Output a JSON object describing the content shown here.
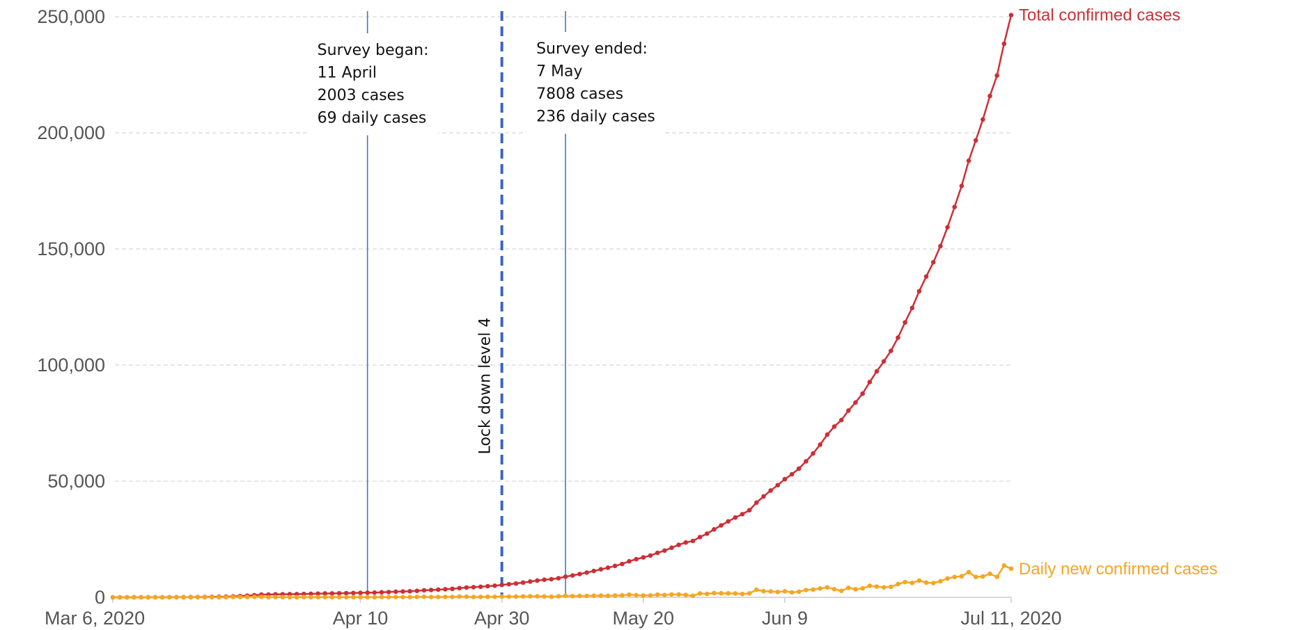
{
  "chart_data": {
    "type": "line",
    "x": [
      "2020-03-06",
      "2020-03-07",
      "2020-03-08",
      "2020-03-09",
      "2020-03-10",
      "2020-03-11",
      "2020-03-12",
      "2020-03-13",
      "2020-03-14",
      "2020-03-15",
      "2020-03-16",
      "2020-03-17",
      "2020-03-18",
      "2020-03-19",
      "2020-03-20",
      "2020-03-21",
      "2020-03-22",
      "2020-03-23",
      "2020-03-24",
      "2020-03-25",
      "2020-03-26",
      "2020-03-27",
      "2020-03-28",
      "2020-03-29",
      "2020-03-30",
      "2020-03-31",
      "2020-04-01",
      "2020-04-02",
      "2020-04-03",
      "2020-04-04",
      "2020-04-05",
      "2020-04-06",
      "2020-04-07",
      "2020-04-08",
      "2020-04-09",
      "2020-04-10",
      "2020-04-11",
      "2020-04-12",
      "2020-04-13",
      "2020-04-14",
      "2020-04-15",
      "2020-04-16",
      "2020-04-17",
      "2020-04-18",
      "2020-04-19",
      "2020-04-20",
      "2020-04-21",
      "2020-04-22",
      "2020-04-23",
      "2020-04-24",
      "2020-04-25",
      "2020-04-26",
      "2020-04-27",
      "2020-04-28",
      "2020-04-29",
      "2020-04-30",
      "2020-05-01",
      "2020-05-02",
      "2020-05-03",
      "2020-05-04",
      "2020-05-05",
      "2020-05-06",
      "2020-05-07",
      "2020-05-08",
      "2020-05-09",
      "2020-05-10",
      "2020-05-11",
      "2020-05-12",
      "2020-05-13",
      "2020-05-14",
      "2020-05-15",
      "2020-05-16",
      "2020-05-17",
      "2020-05-18",
      "2020-05-19",
      "2020-05-20",
      "2020-05-21",
      "2020-05-22",
      "2020-05-23",
      "2020-05-24",
      "2020-05-25",
      "2020-05-26",
      "2020-05-27",
      "2020-05-28",
      "2020-05-29",
      "2020-05-30",
      "2020-05-31",
      "2020-06-01",
      "2020-06-02",
      "2020-06-03",
      "2020-06-04",
      "2020-06-05",
      "2020-06-06",
      "2020-06-07",
      "2020-06-08",
      "2020-06-09",
      "2020-06-10",
      "2020-06-11",
      "2020-06-12",
      "2020-06-13",
      "2020-06-14",
      "2020-06-15",
      "2020-06-16",
      "2020-06-17",
      "2020-06-18",
      "2020-06-19",
      "2020-06-20",
      "2020-06-21",
      "2020-06-22",
      "2020-06-23",
      "2020-06-24",
      "2020-06-25",
      "2020-06-26",
      "2020-06-27",
      "2020-06-28",
      "2020-06-29",
      "2020-06-30",
      "2020-07-01",
      "2020-07-02",
      "2020-07-03",
      "2020-07-04",
      "2020-07-05",
      "2020-07-06",
      "2020-07-07",
      "2020-07-08",
      "2020-07-09",
      "2020-07-10",
      "2020-07-11"
    ],
    "series": [
      {
        "name": "Total confirmed cases",
        "color": "#cc2f36",
        "values": [
          1,
          1,
          2,
          7,
          7,
          13,
          17,
          24,
          38,
          51,
          62,
          85,
          116,
          150,
          202,
          240,
          274,
          402,
          554,
          709,
          927,
          1170,
          1187,
          1280,
          1326,
          1353,
          1380,
          1462,
          1505,
          1585,
          1655,
          1686,
          1749,
          1794,
          1845,
          1934,
          2003,
          2028,
          2173,
          2272,
          2415,
          2506,
          2605,
          2783,
          3034,
          3158,
          3300,
          3465,
          3635,
          3953,
          4220,
          4361,
          4546,
          4793,
          4996,
          5350,
          5647,
          5951,
          6336,
          6783,
          7220,
          7572,
          7808,
          8232,
          8895,
          9420,
          10015,
          10652,
          11350,
          12074,
          12739,
          13524,
          14355,
          15515,
          16433,
          17200,
          18003,
          19137,
          20125,
          21343,
          22583,
          23615,
          24264,
          25937,
          27403,
          29240,
          30967,
          32683,
          34357,
          35812,
          37525,
          40792,
          43434,
          45973,
          48285,
          50879,
          52991,
          55421,
          58568,
          61927,
          65736,
          70038,
          73533,
          76334,
          80412,
          83890,
          87715,
          92681,
          97302,
          101590,
          106108,
          111796,
          118375,
          124590,
          131800,
          138134,
          144264,
          151209,
          159333,
          168061,
          177124,
          187977,
          196750,
          205721,
          215855,
          224665,
          238339,
          250687
        ]
      },
      {
        "name": "Daily new confirmed cases",
        "color": "#f5a623",
        "values": [
          1,
          0,
          1,
          5,
          0,
          6,
          4,
          7,
          14,
          13,
          11,
          23,
          31,
          34,
          52,
          38,
          34,
          128,
          152,
          155,
          218,
          243,
          17,
          93,
          46,
          27,
          27,
          82,
          43,
          80,
          70,
          31,
          63,
          45,
          51,
          89,
          69,
          25,
          145,
          99,
          143,
          91,
          99,
          178,
          251,
          124,
          142,
          165,
          170,
          318,
          267,
          141,
          185,
          247,
          203,
          354,
          297,
          304,
          385,
          447,
          437,
          352,
          236,
          424,
          663,
          525,
          595,
          637,
          698,
          724,
          665,
          785,
          831,
          1160,
          918,
          767,
          803,
          1134,
          988,
          1218,
          1240,
          1032,
          649,
          1673,
          1466,
          1837,
          1727,
          1716,
          1674,
          1455,
          1713,
          3267,
          2642,
          2539,
          2312,
          2594,
          2112,
          2430,
          3147,
          3359,
          3809,
          4302,
          3495,
          2801,
          4078,
          3478,
          3825,
          4966,
          4621,
          4288,
          4518,
          5688,
          6579,
          6215,
          7210,
          6334,
          6130,
          6945,
          8124,
          8728,
          9063,
          10853,
          8773,
          8971,
          10134,
          8810,
          13674,
          12348
        ]
      }
    ],
    "xlim": [
      "2020-03-06",
      "2020-07-11"
    ],
    "xticks": [
      {
        "value": "2020-03-06",
        "label": "Mar 6, 2020"
      },
      {
        "value": "2020-04-10",
        "label": "Apr 10"
      },
      {
        "value": "2020-04-30",
        "label": "Apr 30"
      },
      {
        "value": "2020-05-20",
        "label": "May 20"
      },
      {
        "value": "2020-06-09",
        "label": "Jun 9"
      },
      {
        "value": "2020-07-11",
        "label": "Jul 11, 2020"
      }
    ],
    "ylim": [
      0,
      250000
    ],
    "yticks": [
      0,
      {
        "value": 50000,
        "label": "50,000"
      },
      {
        "value": 100000,
        "label": "100,000"
      },
      {
        "value": 150000,
        "label": "150,000"
      },
      {
        "value": 200000,
        "label": "200,000"
      },
      {
        "value": 250000,
        "label": "250,000"
      }
    ],
    "grid": true,
    "annotations": [
      {
        "x": "2020-04-11",
        "style": "solid",
        "lines": [
          "Survey began:",
          "11 April",
          "2003 cases",
          "69 daily cases"
        ]
      },
      {
        "x": "2020-04-30",
        "style": "dashed",
        "rotate": true,
        "lines": [
          "Lock down level 4"
        ]
      },
      {
        "x": "2020-05-09",
        "style": "solid",
        "lines": [
          "Survey ended:",
          "7 May",
          "7808 cases",
          "236 daily cases"
        ]
      }
    ]
  }
}
